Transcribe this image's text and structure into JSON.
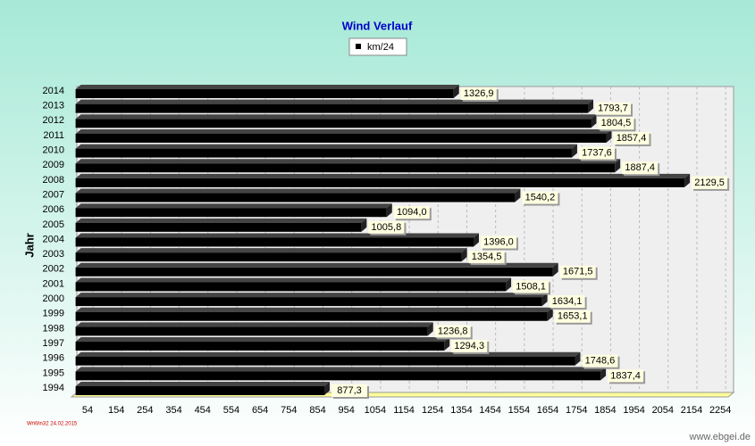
{
  "chart_data": {
    "type": "hbar",
    "title": "Wind Verlauf",
    "y_label": "Jahr",
    "categories": [
      "1994",
      "1995",
      "1996",
      "1997",
      "1998",
      "1999",
      "2000",
      "2001",
      "2002",
      "2003",
      "2004",
      "2005",
      "2006",
      "2007",
      "2008",
      "2009",
      "2010",
      "2011",
      "2012",
      "2013",
      "2014"
    ],
    "series": [
      {
        "name": "km/24",
        "color": "#000000",
        "values": [
          877.3,
          1837.4,
          1748.6,
          1294.3,
          1236.8,
          1653.1,
          1634.1,
          1508.1,
          1671.5,
          1354.5,
          1396.0,
          1005.8,
          1094.0,
          1540.2,
          2129.5,
          1887.4,
          1737.6,
          1857.4,
          1804.5,
          1793.7,
          1326.9
        ],
        "value_labels": [
          "877,3",
          "1837,4",
          "1748,6",
          "1294,3",
          "1236,8",
          "1653,1",
          "1634,1",
          "1508,1",
          "1671,5",
          "1354,5",
          "1396,0",
          "1005,8",
          "1094,0",
          "1540,2",
          "2129,5",
          "1887,4",
          "1737,6",
          "1857,4",
          "1804,5",
          "1793,7",
          "1326,9"
        ]
      }
    ],
    "xlim": [
      0,
      2300
    ],
    "xticks": [
      54,
      154,
      254,
      354,
      454,
      554,
      654,
      754,
      854,
      954,
      1054,
      1154,
      1254,
      1354,
      1454,
      1554,
      1654,
      1754,
      1854,
      1954,
      2054,
      2154,
      2254
    ],
    "grid": true,
    "annotations": [
      "WrWin32  24.02.2015",
      "www.ebgei.de"
    ]
  }
}
